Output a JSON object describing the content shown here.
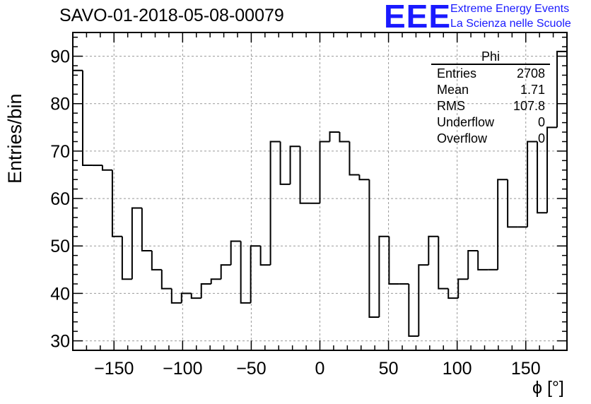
{
  "title": "SAVO-01-2018-05-08-00079",
  "logo": {
    "mark": "EEE",
    "line1": "Extreme Energy Events",
    "line2": "La Scienza nelle Scuole",
    "color": "#1a1aff"
  },
  "stats_box": {
    "title": "Phi",
    "rows": [
      {
        "label": "Entries",
        "value": "2708"
      },
      {
        "label": "Mean",
        "value": "1.71"
      },
      {
        "label": "RMS",
        "value": "107.8"
      },
      {
        "label": "Underflow",
        "value": "0"
      },
      {
        "label": "Overflow",
        "value": "0"
      }
    ]
  },
  "chart_data": {
    "type": "histogram",
    "title": "SAVO-01-2018-05-08-00079",
    "xlabel": "ϕ [°]",
    "ylabel": "Entries/bin",
    "xlim": [
      -180,
      180
    ],
    "ylim": [
      28,
      95
    ],
    "bin_width": 7.2,
    "x_ticks": [
      -150,
      -100,
      -50,
      0,
      50,
      100,
      150
    ],
    "x_tick_labels": [
      "−150",
      "−100",
      "−50",
      "0",
      "50",
      "100",
      "150"
    ],
    "y_ticks": [
      30,
      40,
      50,
      60,
      70,
      80,
      90
    ],
    "y_tick_labels": [
      "30",
      "40",
      "50",
      "60",
      "70",
      "80",
      "90"
    ],
    "grid": true,
    "line_color": "#000000",
    "values": [
      87,
      67,
      67,
      66,
      52,
      43,
      58,
      49,
      45,
      41,
      38,
      40,
      39,
      42,
      43,
      46,
      51,
      38,
      50,
      46,
      72,
      63,
      71,
      59,
      59,
      72,
      74,
      72,
      65,
      64,
      35,
      52,
      42,
      42,
      31,
      46,
      52,
      41,
      39,
      43,
      49,
      45,
      45,
      64,
      54,
      54,
      72,
      57,
      75,
      91
    ]
  }
}
